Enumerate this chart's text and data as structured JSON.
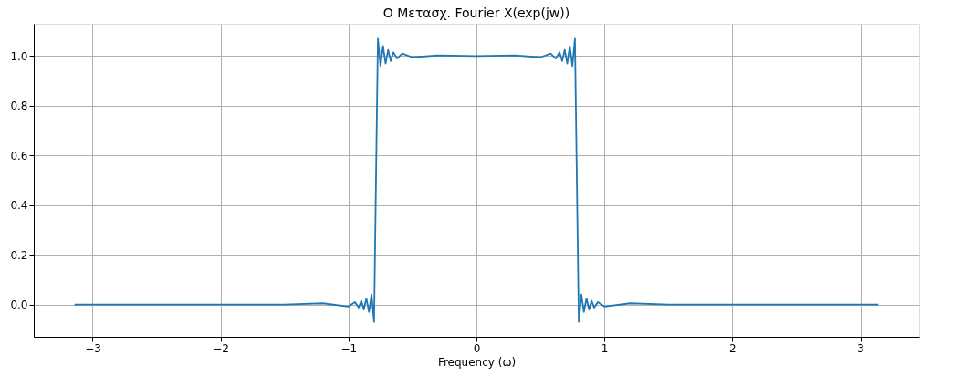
{
  "chart_data": {
    "type": "line",
    "title": "Ο Μετασχ. Fourier X(exp(jw))",
    "xlabel": "Frequency (ω)",
    "x": [
      -3.1416,
      -2.5,
      -2.0,
      -1.5,
      -1.2,
      -1.0,
      -0.95,
      -0.92,
      -0.9,
      -0.88,
      -0.86,
      -0.84,
      -0.82,
      -0.8,
      -0.785,
      -0.77,
      -0.75,
      -0.73,
      -0.71,
      -0.69,
      -0.67,
      -0.65,
      -0.62,
      -0.58,
      -0.5,
      -0.3,
      0,
      0.3,
      0.5,
      0.58,
      0.62,
      0.65,
      0.67,
      0.69,
      0.71,
      0.73,
      0.75,
      0.77,
      0.785,
      0.8,
      0.82,
      0.84,
      0.86,
      0.88,
      0.9,
      0.92,
      0.95,
      1.0,
      1.2,
      1.5,
      2.0,
      2.5,
      3.1416
    ],
    "series": [
      {
        "color": "#1f77b4",
        "values": [
          0,
          0,
          0,
          0,
          0.005,
          -0.008,
          0.01,
          -0.012,
          0.015,
          -0.02,
          0.025,
          -0.03,
          0.04,
          -0.07,
          0.5,
          1.07,
          0.96,
          1.04,
          0.97,
          1.025,
          0.98,
          1.015,
          0.99,
          1.01,
          0.995,
          1.003,
          1.0,
          1.003,
          0.995,
          1.01,
          0.99,
          1.015,
          0.98,
          1.025,
          0.97,
          1.04,
          0.96,
          1.07,
          0.5,
          -0.07,
          0.04,
          -0.03,
          0.025,
          -0.02,
          0.015,
          -0.012,
          0.01,
          -0.008,
          0.005,
          0,
          0,
          0,
          0
        ]
      }
    ],
    "xlim": [
      -3.46,
      3.46
    ],
    "ylim": [
      -0.13,
      1.13
    ],
    "xticks": [
      {
        "value": -3,
        "label": "−3"
      },
      {
        "value": -2,
        "label": "−2"
      },
      {
        "value": -1,
        "label": "−1"
      },
      0,
      1,
      2,
      3
    ],
    "yticks": [
      {
        "value": 0,
        "label": "0.0"
      },
      {
        "value": 0.2,
        "label": "0.2"
      },
      {
        "value": 0.4,
        "label": "0.4"
      },
      {
        "value": 0.6,
        "label": "0.6"
      },
      {
        "value": 0.8,
        "label": "0.8"
      },
      {
        "value": 1.0,
        "label": "1.0"
      }
    ],
    "grid": true
  }
}
